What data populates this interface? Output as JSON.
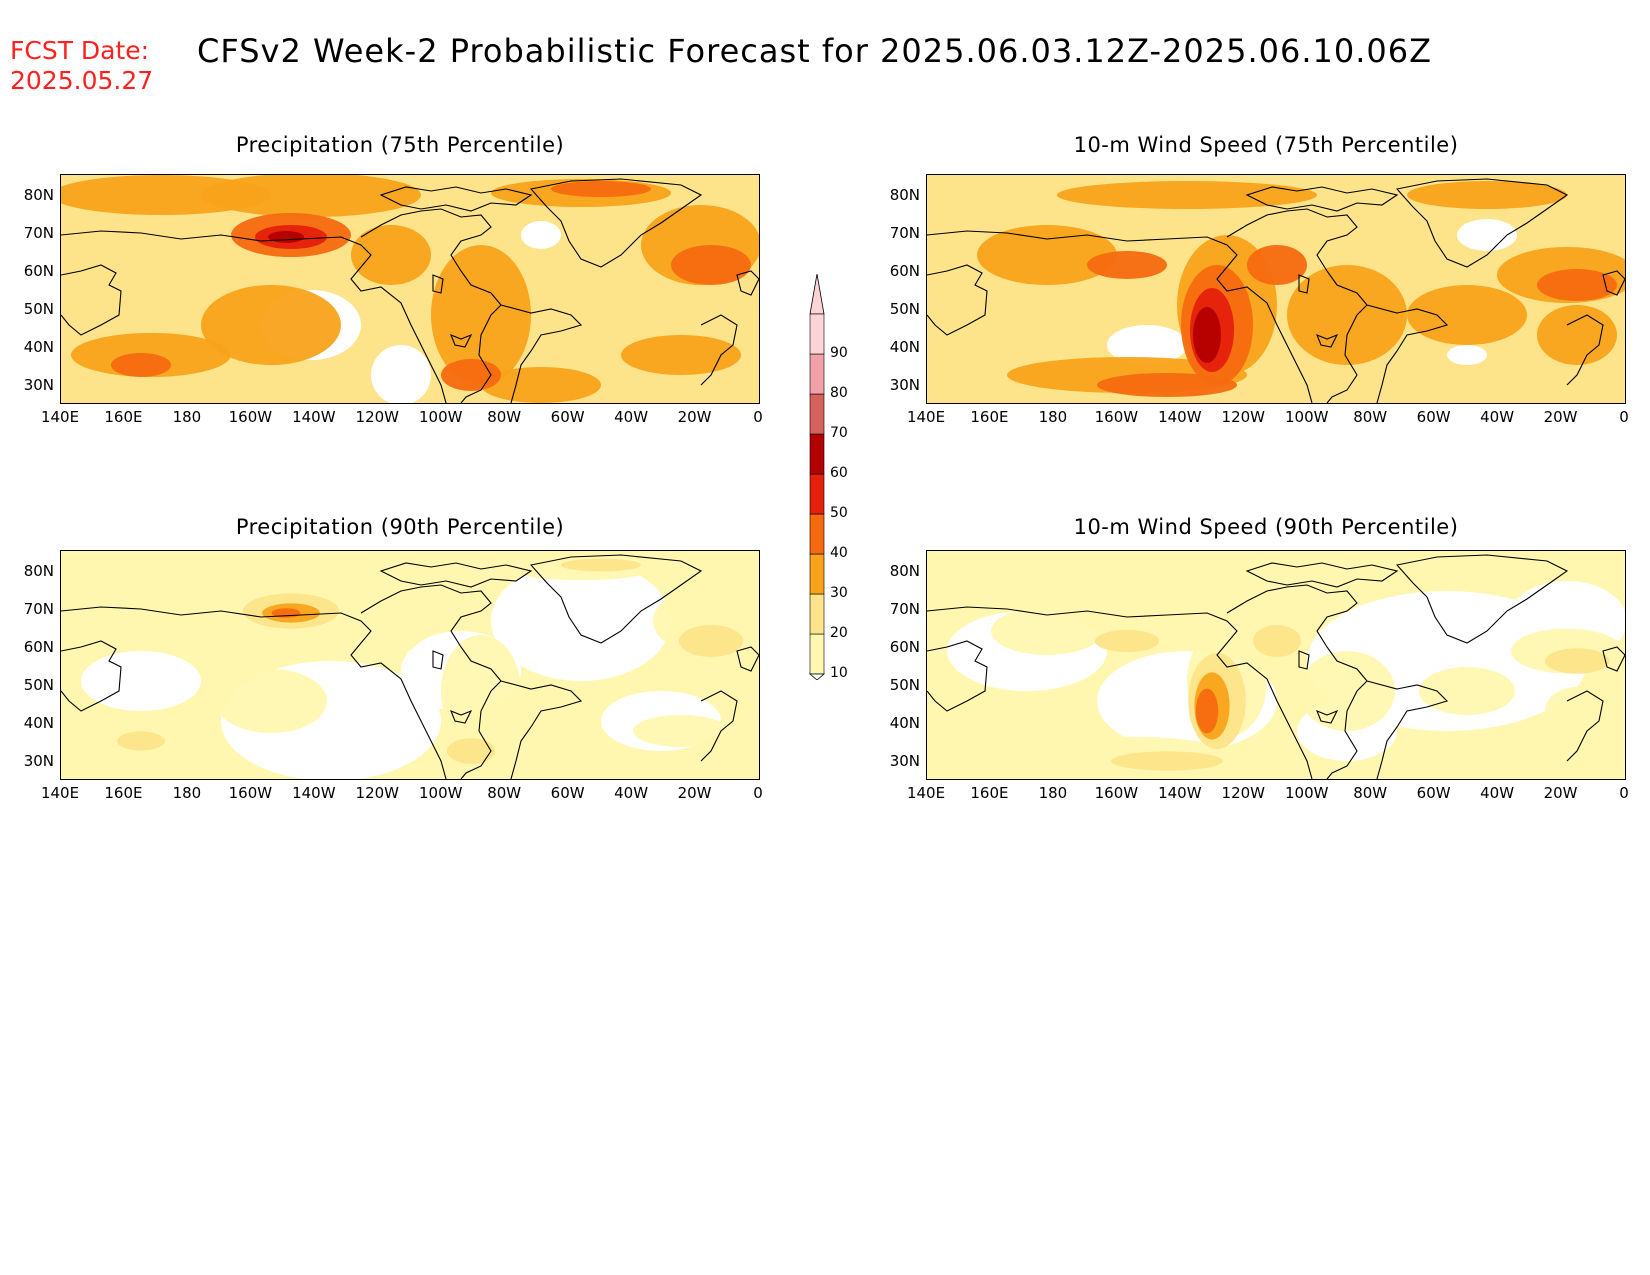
{
  "header": {
    "fcst_label": "FCST Date:",
    "fcst_date": "2025.05.27",
    "title": "CFSv2 Week-2 Probabilistic Forecast for 2025.06.03.12Z-2025.06.10.06Z"
  },
  "panels": [
    {
      "id": "precip-75",
      "title": "Precipitation (75th Percentile)",
      "intensity": "high",
      "variable": "precip"
    },
    {
      "id": "wind-75",
      "title": "10-m Wind Speed (75th Percentile)",
      "intensity": "high",
      "variable": "wind"
    },
    {
      "id": "precip-90",
      "title": "Precipitation (90th Percentile)",
      "intensity": "low",
      "variable": "precip"
    },
    {
      "id": "wind-90",
      "title": "10-m Wind Speed (90th Percentile)",
      "intensity": "low",
      "variable": "wind"
    }
  ],
  "lat_labels": [
    "80N",
    "70N",
    "60N",
    "50N",
    "40N",
    "30N"
  ],
  "lon_labels": [
    "140E",
    "160E",
    "180",
    "160W",
    "140W",
    "120W",
    "100W",
    "80W",
    "60W",
    "40W",
    "20W",
    "0"
  ],
  "colorbar": {
    "levels": [
      "10",
      "20",
      "30",
      "40",
      "50",
      "60",
      "70",
      "80",
      "90"
    ],
    "colors": [
      "#fff7b0",
      "#fde48a",
      "#f9a21a",
      "#f56a0f",
      "#e5200c",
      "#b30000",
      "#d6625e",
      "#f0a2a8",
      "#fbd4d8"
    ]
  },
  "colors": {
    "fcst_red": "#ff2020"
  }
}
